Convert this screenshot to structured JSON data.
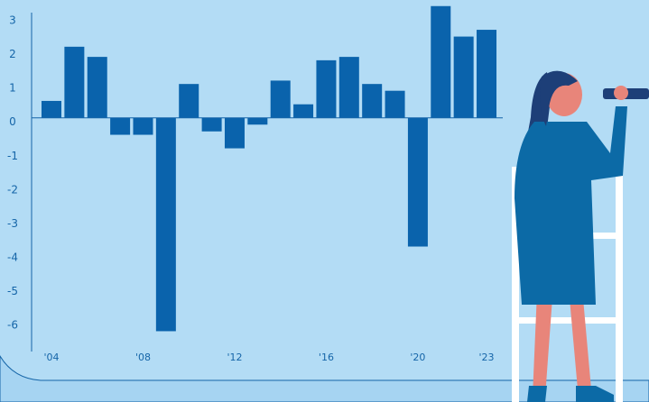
{
  "chart_data": {
    "type": "bar",
    "categories": [
      "'04",
      null,
      null,
      null,
      "'08",
      null,
      null,
      null,
      "'12",
      null,
      null,
      null,
      "'16",
      null,
      null,
      null,
      "'20",
      null,
      null,
      "'23"
    ],
    "values": [
      0.5,
      2.1,
      1.8,
      -0.5,
      -0.5,
      -6.3,
      1.0,
      -0.4,
      -0.9,
      -0.2,
      1.1,
      0.4,
      1.7,
      1.8,
      1.0,
      0.8,
      -3.8,
      3.3,
      2.4,
      2.6
    ],
    "color": "#0a63ac",
    "ylim": [
      -6.9,
      3.4
    ],
    "yticks": [
      3,
      2,
      1,
      0,
      -1,
      -2,
      -3,
      -4,
      -5,
      -6
    ]
  }
}
